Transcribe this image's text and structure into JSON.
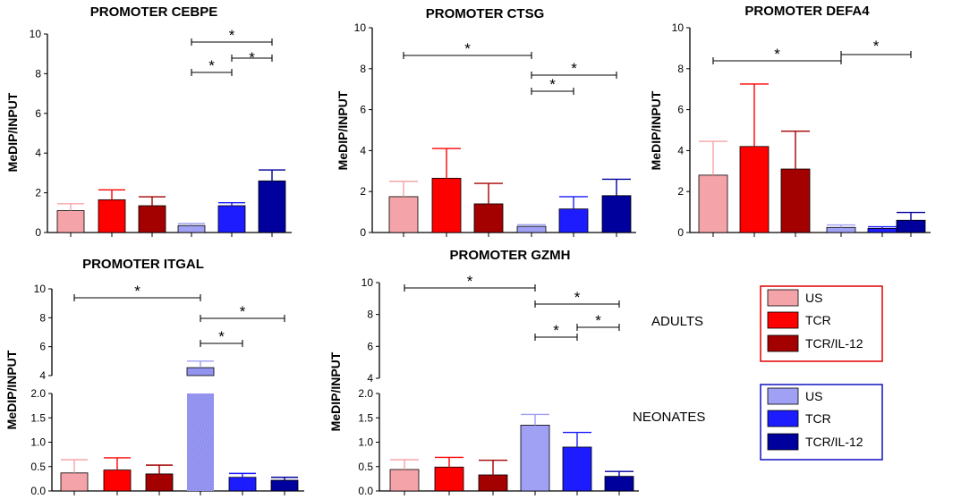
{
  "figure": {
    "legend": {
      "groups": [
        {
          "name": "ADULTS",
          "border": "#e00000",
          "items": [
            {
              "label": "US",
              "color": "#f4a4a8"
            },
            {
              "label": "TCR",
              "color": "#ff0000"
            },
            {
              "label": "TCR/IL-12",
              "color": "#a30000"
            }
          ]
        },
        {
          "name": "NEONATES",
          "border": "#1010c0",
          "items": [
            {
              "label": "US",
              "color": "#a0a0f4"
            },
            {
              "label": "TCR",
              "color": "#1c1cff"
            },
            {
              "label": "TCR/IL-12",
              "color": "#00009c"
            }
          ]
        }
      ]
    }
  },
  "chart_data": [
    {
      "type": "bar",
      "title": "PROMOTER CEBPE",
      "ylabel": "MeDIP/INPUT",
      "categories": [
        "Adults US",
        "Adults TCR",
        "Adults TCR/IL-12",
        "Neonates US",
        "Neonates TCR",
        "Neonates TCR/IL-12"
      ],
      "values": [
        1.1,
        1.65,
        1.35,
        0.35,
        1.35,
        2.6
      ],
      "errors": [
        0.35,
        0.5,
        0.45,
        0.1,
        0.15,
        0.55
      ],
      "ylim": [
        0,
        10
      ],
      "yticks": [
        "0",
        "2",
        "4",
        "6",
        "8",
        "10"
      ],
      "significance": [
        {
          "from": 3,
          "to": 5,
          "label": "*"
        },
        {
          "from": 3,
          "to": 4,
          "label": "*"
        },
        {
          "from": 4,
          "to": 5,
          "label": "*"
        }
      ]
    },
    {
      "type": "bar",
      "title": "PROMOTER CTSG",
      "ylabel": "MeDIP/INPUT",
      "categories": [
        "Adults US",
        "Adults TCR",
        "Adults TCR/IL-12",
        "Neonates US",
        "Neonates TCR",
        "Neonates TCR/IL-12"
      ],
      "values": [
        1.75,
        2.65,
        1.4,
        0.3,
        1.15,
        1.8
      ],
      "errors": [
        0.75,
        1.45,
        1.0,
        0.08,
        0.6,
        0.8
      ],
      "ylim": [
        0,
        10
      ],
      "yticks": [
        "0",
        "2",
        "4",
        "6",
        "8",
        "10"
      ],
      "significance": [
        {
          "from": 0,
          "to": 3,
          "label": "*"
        },
        {
          "from": 3,
          "to": 5,
          "label": "*"
        },
        {
          "from": 3,
          "to": 4,
          "label": "*"
        }
      ]
    },
    {
      "type": "bar",
      "title": "PROMOTER DEFA4",
      "ylabel": "MeDIP/INPUT",
      "categories": [
        "Adults US",
        "Adults TCR",
        "Adults TCR/IL-12",
        "Neonates US",
        "Neonates TCR",
        "Neonates TCR/IL-12"
      ],
      "values": [
        2.8,
        4.2,
        3.1,
        0.25,
        0.2,
        0.6
      ],
      "errors": [
        1.65,
        3.05,
        1.85,
        0.12,
        0.08,
        0.38
      ],
      "ylim": [
        0,
        10
      ],
      "yticks": [
        "0",
        "2",
        "4",
        "6",
        "8",
        "10"
      ],
      "significance": [
        {
          "from": 0,
          "to": 3,
          "label": "*"
        },
        {
          "from": 3,
          "to": 5,
          "label": "*"
        }
      ]
    },
    {
      "type": "bar",
      "title": "PROMOTER ITGAL",
      "ylabel": "MeDIP/INPUT",
      "categories": [
        "Adults US",
        "Adults TCR",
        "Adults TCR/IL-12",
        "Neonates US",
        "Neonates TCR",
        "Neonates TCR/IL-12"
      ],
      "values": [
        0.37,
        0.43,
        0.35,
        4.55,
        0.28,
        0.22
      ],
      "errors": [
        0.27,
        0.25,
        0.18,
        0.45,
        0.08,
        0.06
      ],
      "ylim": [
        0,
        10
      ],
      "axis_break": {
        "lower": [
          0,
          2.0
        ],
        "upper": [
          4,
          10
        ]
      },
      "yticks_lower": [
        "0.0",
        "0.5",
        "1.0",
        "1.5",
        "2.0"
      ],
      "yticks_upper": [
        "4",
        "6",
        "8",
        "10"
      ],
      "significance": [
        {
          "from": 0,
          "to": 3,
          "label": "*"
        },
        {
          "from": 3,
          "to": 5,
          "label": "*"
        },
        {
          "from": 3,
          "to": 4,
          "label": "*"
        }
      ]
    },
    {
      "type": "bar",
      "title": "PROMOTER GZMH",
      "ylabel": "MeDIP/INPUT",
      "categories": [
        "Adults US",
        "Adults TCR",
        "Adults TCR/IL-12",
        "Neonates US",
        "Neonates TCR",
        "Neonates TCR/IL-12"
      ],
      "values": [
        0.44,
        0.49,
        0.33,
        1.35,
        0.9,
        0.3
      ],
      "errors": [
        0.2,
        0.2,
        0.3,
        0.22,
        0.3,
        0.1
      ],
      "ylim": [
        0,
        10
      ],
      "axis_break": {
        "lower": [
          0,
          2.0
        ],
        "upper": [
          4,
          10
        ]
      },
      "yticks_lower": [
        "0.0",
        "0.5",
        "1.0",
        "1.5",
        "2.0"
      ],
      "yticks_upper": [
        "4",
        "6",
        "8",
        "10"
      ],
      "significance": [
        {
          "from": 0,
          "to": 3,
          "label": "*"
        },
        {
          "from": 3,
          "to": 5,
          "label": "*"
        },
        {
          "from": 3,
          "to": 4,
          "label": "*"
        },
        {
          "from": 4,
          "to": 5,
          "label": "*"
        }
      ]
    }
  ]
}
